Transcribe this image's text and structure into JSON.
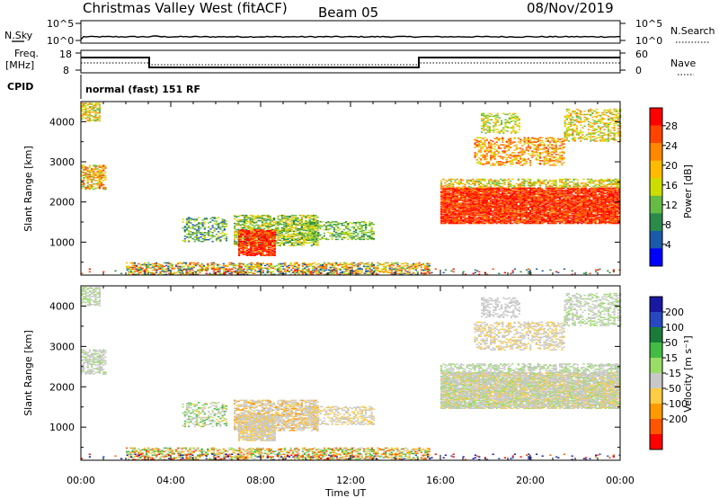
{
  "header": {
    "station": "Christmas Valley West (fitACF)",
    "beam": "Beam 05",
    "date": "08/Nov/2019"
  },
  "top_panels": {
    "nsky_label": "N.Sky",
    "nsky_ticks": [
      "10^5",
      "10^0"
    ],
    "nsearch_label": "N.Search",
    "nsearch_ticks": [
      "10^5",
      "10^0"
    ],
    "freq_label_1": "Freq.",
    "freq_label_2": "[MHz]",
    "freq_ticks": [
      "18",
      "8"
    ],
    "nave_label": "Nave",
    "nave_ticks": [
      "60",
      "0"
    ],
    "cpid_label": "CPID",
    "cpid_text": "normal (fast) 151 RF"
  },
  "axes": {
    "xlabel": "Time UT",
    "xticks": [
      "00:00",
      "04:00",
      "08:00",
      "12:00",
      "16:00",
      "20:00",
      "00:00"
    ],
    "ylabel": "Slant Range [km]",
    "yticks": [
      "4000",
      "3000",
      "2000",
      "1000"
    ]
  },
  "power_bar": {
    "label": "Power [dB]",
    "ticks": [
      "28",
      "24",
      "20",
      "16",
      "12",
      "8",
      "4"
    ],
    "colors": [
      "#ff0000",
      "#ff4400",
      "#ff8800",
      "#ffbb00",
      "#ccdd00",
      "#66bb44",
      "#2a8a4a",
      "#1a5aaa",
      "#0000ff"
    ]
  },
  "velocity_bar": {
    "label": "Velocity [m s⁻¹]",
    "ticks": [
      "200",
      "100",
      "50",
      "15",
      "-15",
      "-50",
      "-100",
      "-200"
    ],
    "colors": [
      "#1818a0",
      "#2848c0",
      "#1a7a3a",
      "#44bb44",
      "#99dd66",
      "#c8c8c8",
      "#ffcc44",
      "#ff9900",
      "#ff5500",
      "#ff0000"
    ]
  }
}
